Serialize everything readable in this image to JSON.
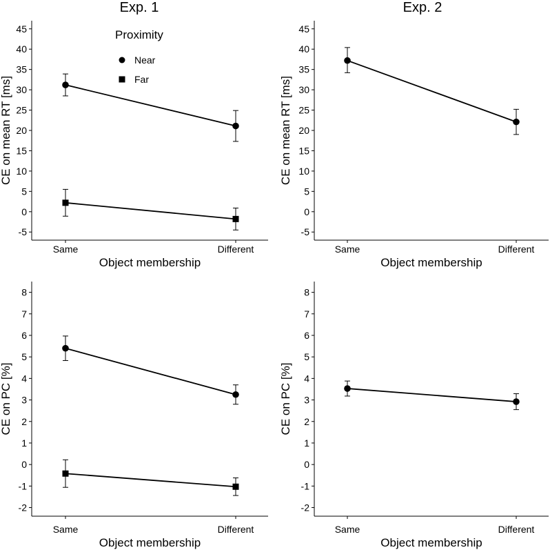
{
  "figure": {
    "column_titles": [
      "Exp. 1",
      "Exp. 2"
    ]
  },
  "legend": {
    "title": "Proximity",
    "entries": [
      {
        "label": "Near",
        "marker": "circle"
      },
      {
        "label": "Far",
        "marker": "square"
      }
    ]
  },
  "chart_data": [
    {
      "type": "line",
      "panel": "top-left",
      "title": "Exp. 1",
      "xlabel": "Object membership",
      "ylabel": "CE on mean RT [ms]",
      "categories": [
        "Same",
        "Different"
      ],
      "ylim": [
        -7,
        47
      ],
      "yticks": [
        -5,
        0,
        5,
        10,
        15,
        20,
        25,
        30,
        35,
        40,
        45
      ],
      "show_legend": true,
      "legend_position": "top-center",
      "series": [
        {
          "name": "Near",
          "marker": "circle",
          "values": [
            31.2,
            21.1
          ],
          "lower": [
            28.5,
            17.3
          ],
          "upper": [
            33.9,
            24.9
          ]
        },
        {
          "name": "Far",
          "marker": "square",
          "values": [
            2.2,
            -1.8
          ],
          "lower": [
            -1.1,
            -4.5
          ],
          "upper": [
            5.5,
            0.9
          ]
        }
      ]
    },
    {
      "type": "line",
      "panel": "top-right",
      "title": "Exp. 2",
      "xlabel": "Object membership",
      "ylabel": "CE on mean RT [ms]",
      "categories": [
        "Same",
        "Different"
      ],
      "ylim": [
        -7,
        47
      ],
      "yticks": [
        -5,
        0,
        5,
        10,
        15,
        20,
        25,
        30,
        35,
        40,
        45
      ],
      "show_legend": false,
      "series": [
        {
          "name": "Near",
          "marker": "circle",
          "values": [
            37.2,
            22.1
          ],
          "lower": [
            34.2,
            19.0
          ],
          "upper": [
            40.4,
            25.2
          ]
        }
      ]
    },
    {
      "type": "line",
      "panel": "bottom-left",
      "title": "",
      "xlabel": "Object membership",
      "ylabel": "CE on PC [%]",
      "categories": [
        "Same",
        "Different"
      ],
      "ylim": [
        -2.4,
        8.5
      ],
      "yticks": [
        -2,
        -1,
        0,
        1,
        2,
        3,
        4,
        5,
        6,
        7,
        8
      ],
      "show_legend": false,
      "series": [
        {
          "name": "Near",
          "marker": "circle",
          "values": [
            5.4,
            3.25
          ],
          "lower": [
            4.83,
            2.8
          ],
          "upper": [
            5.97,
            3.7
          ]
        },
        {
          "name": "Far",
          "marker": "square",
          "values": [
            -0.42,
            -1.03
          ],
          "lower": [
            -1.06,
            -1.44
          ],
          "upper": [
            0.22,
            -0.62
          ]
        }
      ]
    },
    {
      "type": "line",
      "panel": "bottom-right",
      "title": "",
      "xlabel": "Object membership",
      "ylabel": "CE on PC [%]",
      "categories": [
        "Same",
        "Different"
      ],
      "ylim": [
        -2.4,
        8.5
      ],
      "yticks": [
        -2,
        -1,
        0,
        1,
        2,
        3,
        4,
        5,
        6,
        7,
        8
      ],
      "show_legend": false,
      "series": [
        {
          "name": "Near",
          "marker": "circle",
          "values": [
            3.53,
            2.92
          ],
          "lower": [
            3.18,
            2.55
          ],
          "upper": [
            3.88,
            3.29
          ]
        }
      ]
    }
  ]
}
